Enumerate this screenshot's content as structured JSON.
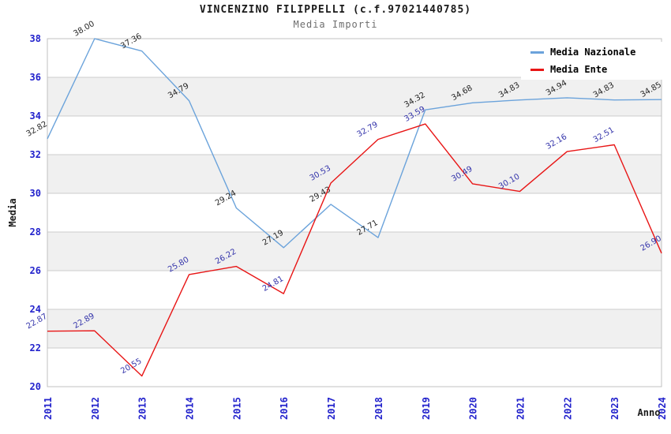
{
  "title": "VINCENZINO FILIPPELLI (c.f.97021440785)",
  "subtitle": "Media Importi",
  "legend": {
    "position": "top-right",
    "items": [
      {
        "label": "Media Nazionale",
        "color": "#6ba3db"
      },
      {
        "label": "Media Ente",
        "color": "#e81515"
      }
    ]
  },
  "colors": {
    "tick_labels": "#2222cc",
    "grid_line": "#cccccc",
    "plot_border": "#c0c0c0",
    "band_fill": "#f0f0f0",
    "axis_title": "#1a1a1a",
    "nazionale_line": "#6ba3db",
    "nazionale_point_labels": "#262626",
    "ente_line": "#e81515",
    "ente_point_labels": "#3333aa"
  },
  "chart_data": {
    "type": "line",
    "title": "VINCENZINO FILIPPELLI (c.f.97021440785)",
    "subtitle": "Media Importi",
    "xlabel": "Anno",
    "ylabel": "Media",
    "x": [
      "2011",
      "2012",
      "2013",
      "2014",
      "2015",
      "2016",
      "2017",
      "2018",
      "2019",
      "2020",
      "2021",
      "2022",
      "2023",
      "2024"
    ],
    "series": [
      {
        "name": "Media Nazionale",
        "color": "#6ba3db",
        "label_color": "#262626",
        "values": [
          32.82,
          38.0,
          37.36,
          34.79,
          29.24,
          27.19,
          29.43,
          27.71,
          34.32,
          34.68,
          34.83,
          34.94,
          34.83,
          34.85
        ]
      },
      {
        "name": "Media Ente",
        "color": "#e81515",
        "label_color": "#3333aa",
        "values": [
          22.87,
          22.89,
          20.55,
          25.8,
          26.22,
          24.81,
          30.53,
          32.79,
          33.59,
          30.49,
          30.1,
          32.16,
          32.51,
          26.9
        ]
      }
    ],
    "ylim": [
      20,
      38
    ],
    "ytick_step": 2,
    "grid": true,
    "alternating_bands": true,
    "point_labels": "values shown rotated -30deg at each data point",
    "legend_position": "top-right"
  }
}
